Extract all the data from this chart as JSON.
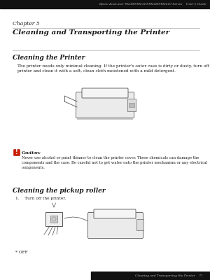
{
  "header_text": "Epson AcuLaser M2300/M2310/M2400/M2410 Series    User's Guide",
  "chapter_label": "Chapter 5",
  "chapter_title": "Cleaning and Transporting the Printer",
  "section1_title": "Cleaning the Printer",
  "section1_body": "The printer needs only minimal cleaning. If the printer's outer case is dirty or dusty, turn off the\nprinter and clean it with a soft, clean cloth moistened with a mild detergent.",
  "caution_label": "Caution:",
  "caution_body": "Never use alcohol or paint thinner to clean the printer cover. These chemicals can damage the\ncomponents and the case. Be careful not to get water onto the printer mechanism or any electrical\ncomponents.",
  "section2_title": "Cleaning the pickup roller",
  "step1_text": "1.    Turn off the printer.",
  "footnote": "* OFF",
  "footer_text": "Cleaning and Transporting the Printer    71",
  "bg_color": "#ffffff",
  "header_bg": "#111111",
  "footer_bg": "#111111",
  "text_color": "#1a1a1a",
  "header_text_color": "#bbbbbb",
  "line_color": "#aaaaaa",
  "caution_icon_color": "#cc2200"
}
